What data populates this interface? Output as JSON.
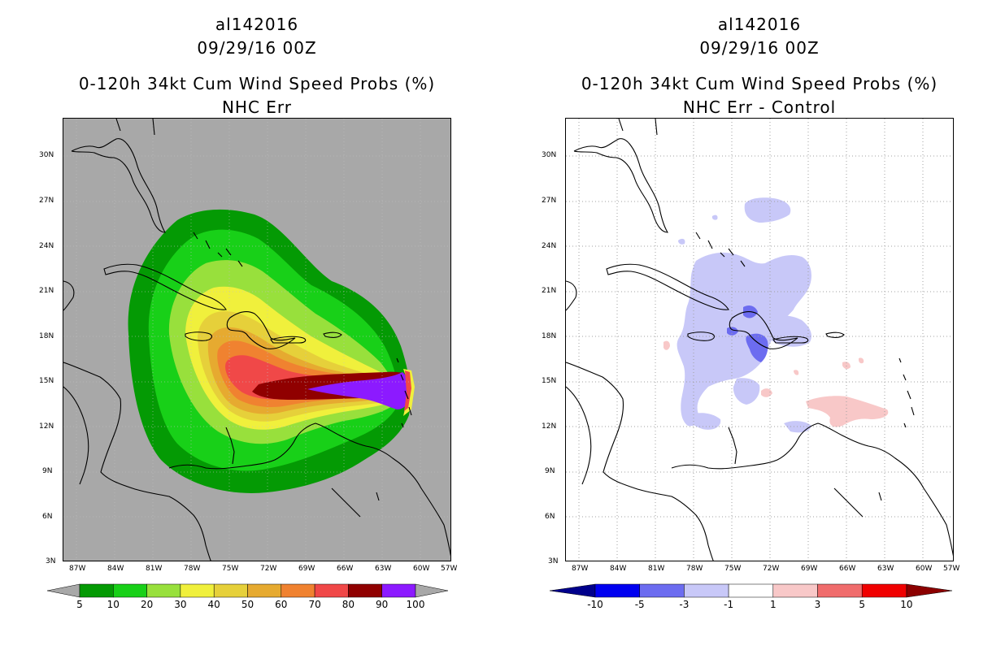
{
  "left": {
    "storm_id": "al142016",
    "datetime": "09/29/16 00Z",
    "product": "0-120h 34kt Cum Wind Speed Probs (%)",
    "subtitle": "NHC Err",
    "colorbar": {
      "labels": [
        "5",
        "10",
        "20",
        "30",
        "40",
        "50",
        "60",
        "70",
        "80",
        "90",
        "100"
      ],
      "colors": [
        "#049a04",
        "#18d018",
        "#98e03c",
        "#f0f03c",
        "#e6d03a",
        "#e6aa30",
        "#f08230",
        "#f04848",
        "#900000",
        "#8c1aff"
      ]
    }
  },
  "right": {
    "storm_id": "al142016",
    "datetime": "09/29/16 00Z",
    "product": "0-120h 34kt Cum Wind Speed Probs (%)",
    "subtitle": "NHC Err - Control",
    "colorbar": {
      "labels": [
        "-10",
        "-5",
        "-3",
        "-1",
        "1",
        "3",
        "5",
        "10"
      ],
      "colors": [
        "#00008c",
        "#0000f0",
        "#6c6cf0",
        "#c8c8f8",
        "#ffffff",
        "#f8c8c8",
        "#f06c6c",
        "#f00000",
        "#8c0000"
      ]
    }
  },
  "axes": {
    "x_ticks": [
      "87W",
      "84W",
      "81W",
      "78W",
      "75W",
      "72W",
      "69W",
      "66W",
      "63W",
      "60W",
      "57W"
    ],
    "y_ticks": [
      "3N",
      "6N",
      "9N",
      "12N",
      "15N",
      "18N",
      "21N",
      "24N",
      "27N",
      "30N"
    ]
  }
}
